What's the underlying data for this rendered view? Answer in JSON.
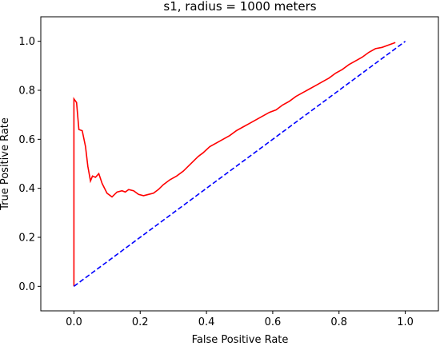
{
  "chart_data": {
    "type": "line",
    "title": "s1, radius = 1000 meters",
    "xlabel": "False Positive Rate",
    "ylabel": "True Positive Rate",
    "xlim": [
      -0.1,
      1.1
    ],
    "ylim": [
      -0.1,
      1.1
    ],
    "xticks": [
      0.0,
      0.2,
      0.4,
      0.6,
      0.8,
      1.0
    ],
    "yticks": [
      0.0,
      0.2,
      0.4,
      0.6,
      0.8,
      1.0
    ],
    "xtick_labels": [
      "0.0",
      "0.2",
      "0.4",
      "0.6",
      "0.8",
      "1.0"
    ],
    "ytick_labels": [
      "0.0",
      "0.2",
      "0.4",
      "0.6",
      "0.8",
      "1.0"
    ],
    "grid": false,
    "legend": false,
    "series": [
      {
        "color": "#ff0000",
        "style": "solid",
        "points": [
          [
            0.0,
            0.0
          ],
          [
            0.0,
            0.765
          ],
          [
            0.008,
            0.75
          ],
          [
            0.015,
            0.64
          ],
          [
            0.025,
            0.635
          ],
          [
            0.035,
            0.57
          ],
          [
            0.042,
            0.49
          ],
          [
            0.05,
            0.43
          ],
          [
            0.056,
            0.45
          ],
          [
            0.065,
            0.445
          ],
          [
            0.075,
            0.46
          ],
          [
            0.085,
            0.42
          ],
          [
            0.1,
            0.38
          ],
          [
            0.115,
            0.365
          ],
          [
            0.13,
            0.385
          ],
          [
            0.145,
            0.39
          ],
          [
            0.155,
            0.385
          ],
          [
            0.165,
            0.395
          ],
          [
            0.18,
            0.39
          ],
          [
            0.195,
            0.375
          ],
          [
            0.21,
            0.37
          ],
          [
            0.225,
            0.375
          ],
          [
            0.24,
            0.38
          ],
          [
            0.255,
            0.395
          ],
          [
            0.27,
            0.415
          ],
          [
            0.29,
            0.435
          ],
          [
            0.31,
            0.45
          ],
          [
            0.33,
            0.47
          ],
          [
            0.345,
            0.49
          ],
          [
            0.36,
            0.51
          ],
          [
            0.375,
            0.53
          ],
          [
            0.39,
            0.545
          ],
          [
            0.41,
            0.57
          ],
          [
            0.43,
            0.585
          ],
          [
            0.45,
            0.6
          ],
          [
            0.47,
            0.615
          ],
          [
            0.49,
            0.635
          ],
          [
            0.51,
            0.65
          ],
          [
            0.53,
            0.665
          ],
          [
            0.55,
            0.68
          ],
          [
            0.57,
            0.695
          ],
          [
            0.59,
            0.71
          ],
          [
            0.61,
            0.72
          ],
          [
            0.63,
            0.74
          ],
          [
            0.65,
            0.755
          ],
          [
            0.67,
            0.775
          ],
          [
            0.69,
            0.79
          ],
          [
            0.71,
            0.805
          ],
          [
            0.73,
            0.82
          ],
          [
            0.75,
            0.835
          ],
          [
            0.77,
            0.85
          ],
          [
            0.79,
            0.87
          ],
          [
            0.81,
            0.885
          ],
          [
            0.83,
            0.905
          ],
          [
            0.85,
            0.92
          ],
          [
            0.87,
            0.935
          ],
          [
            0.89,
            0.955
          ],
          [
            0.91,
            0.97
          ],
          [
            0.93,
            0.975
          ],
          [
            0.95,
            0.985
          ],
          [
            0.97,
            0.995
          ]
        ]
      },
      {
        "color": "#0000ff",
        "style": "dashed",
        "points": [
          [
            0.0,
            0.0
          ],
          [
            1.0,
            1.0
          ]
        ]
      }
    ]
  }
}
